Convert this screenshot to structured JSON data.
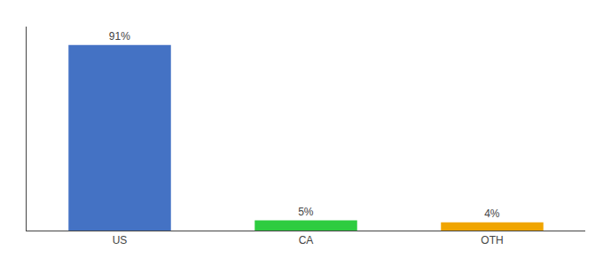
{
  "chart_data": {
    "type": "bar",
    "categories": [
      "US",
      "CA",
      "OTH"
    ],
    "values": [
      91,
      5,
      4
    ],
    "value_labels": [
      "91%",
      "5%",
      "4%"
    ],
    "colors": [
      "#4472c4",
      "#2ecc40",
      "#f0a500"
    ],
    "ylim": [
      0,
      100
    ],
    "data_labels": true,
    "tick_labels": "x",
    "grid": false
  }
}
